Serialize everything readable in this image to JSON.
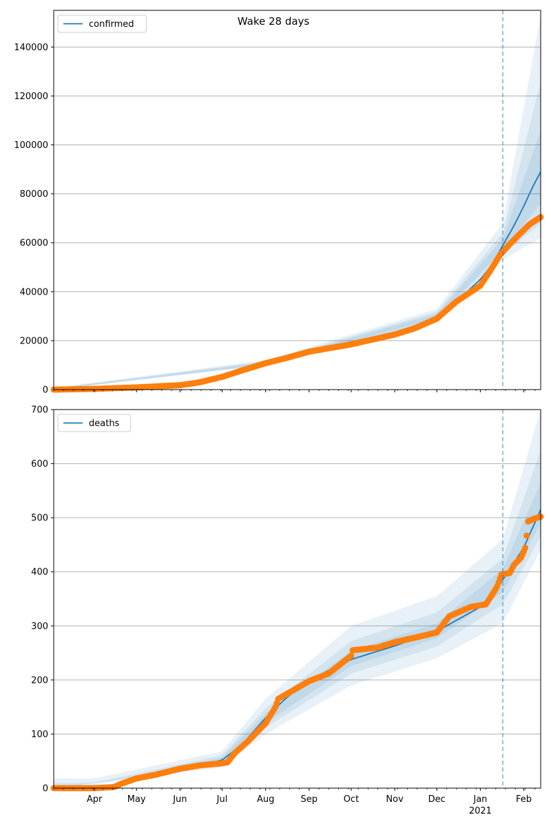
{
  "figure": {
    "title": "Wake 28 days",
    "x_tick_labels": [
      "Apr",
      "May",
      "Jun",
      "Jul",
      "Aug",
      "Sep",
      "Oct",
      "Nov",
      "Dec",
      "Jan",
      "Feb"
    ],
    "x_tick_dates": [
      "2020-04-01",
      "2020-05-01",
      "2020-06-01",
      "2020-07-01",
      "2020-08-01",
      "2020-09-01",
      "2020-10-01",
      "2020-11-01",
      "2020-12-01",
      "2021-01-01",
      "2021-02-01"
    ],
    "year_label": "2021",
    "xlim": [
      "2020-03-03",
      "2021-02-13"
    ],
    "forecast_start": "2021-01-17",
    "colors": {
      "model": "#1f77b4",
      "observed": "#ff7f0e",
      "band": "#1f77b4",
      "grid": "#b0b0b0"
    }
  },
  "chart_data": [
    {
      "type": "line",
      "legend": "confirmed",
      "legend_position": "upper-left",
      "ylim": [
        0,
        155000
      ],
      "y_ticks": [
        0,
        20000,
        40000,
        60000,
        80000,
        100000,
        120000,
        140000
      ],
      "grid": "horizontal",
      "model_series": {
        "name": "confirmed",
        "points": [
          [
            "2020-03-03",
            0
          ],
          [
            "2020-04-01",
            300
          ],
          [
            "2020-05-01",
            800
          ],
          [
            "2020-06-01",
            1900
          ],
          [
            "2020-06-15",
            3000
          ],
          [
            "2020-07-01",
            5200
          ],
          [
            "2020-07-15",
            7800
          ],
          [
            "2020-08-01",
            10800
          ],
          [
            "2020-08-15",
            13000
          ],
          [
            "2020-09-01",
            15800
          ],
          [
            "2020-10-01",
            19500
          ],
          [
            "2020-11-01",
            23500
          ],
          [
            "2020-11-15",
            26000
          ],
          [
            "2020-12-01",
            30000
          ],
          [
            "2020-12-15",
            36000
          ],
          [
            "2021-01-01",
            45000
          ],
          [
            "2021-01-10",
            51500
          ],
          [
            "2021-01-17",
            59000
          ],
          [
            "2021-01-25",
            67000
          ],
          [
            "2021-02-01",
            75000
          ],
          [
            "2021-02-07",
            82500
          ],
          [
            "2021-02-13",
            89000
          ]
        ]
      },
      "bands": [
        {
          "level": "outer",
          "lower": [
            [
              "2020-03-03",
              0
            ],
            [
              "2020-08-01",
              9800
            ],
            [
              "2020-12-01",
              27500
            ],
            [
              "2021-01-17",
              53000
            ],
            [
              "2021-02-13",
              62000
            ]
          ],
          "upper": [
            [
              "2020-03-03",
              800
            ],
            [
              "2020-08-01",
              12000
            ],
            [
              "2020-12-01",
              33000
            ],
            [
              "2021-01-17",
              68000
            ],
            [
              "2021-02-13",
              153000
            ]
          ]
        },
        {
          "level": "middle",
          "lower": [
            [
              "2020-03-03",
              0
            ],
            [
              "2020-08-01",
              10100
            ],
            [
              "2020-12-01",
              28300
            ],
            [
              "2021-01-17",
              55000
            ],
            [
              "2021-02-13",
              68000
            ]
          ],
          "upper": [
            [
              "2020-03-03",
              500
            ],
            [
              "2020-08-01",
              11600
            ],
            [
              "2020-12-01",
              31800
            ],
            [
              "2021-01-17",
              64000
            ],
            [
              "2021-02-13",
              126000
            ]
          ]
        },
        {
          "level": "inner",
          "lower": [
            [
              "2020-03-03",
              0
            ],
            [
              "2020-08-01",
              10400
            ],
            [
              "2020-12-01",
              29000
            ],
            [
              "2021-01-17",
              57000
            ],
            [
              "2021-02-13",
              76000
            ]
          ],
          "upper": [
            [
              "2020-03-03",
              300
            ],
            [
              "2020-08-01",
              11200
            ],
            [
              "2020-12-01",
              31000
            ],
            [
              "2021-01-17",
              61500
            ],
            [
              "2021-02-13",
              106000
            ]
          ]
        }
      ],
      "observed": {
        "points": [
          [
            "2020-03-03",
            0
          ],
          [
            "2020-04-01",
            300
          ],
          [
            "2020-05-01",
            900
          ],
          [
            "2020-06-01",
            1800
          ],
          [
            "2020-06-15",
            3000
          ],
          [
            "2020-07-01",
            5200
          ],
          [
            "2020-07-15",
            7800
          ],
          [
            "2020-08-01",
            10800
          ],
          [
            "2020-08-15",
            12800
          ],
          [
            "2020-09-01",
            15500
          ],
          [
            "2020-10-01",
            18500
          ],
          [
            "2020-11-01",
            22500
          ],
          [
            "2020-11-15",
            25000
          ],
          [
            "2020-12-01",
            29000
          ],
          [
            "2020-12-15",
            36000
          ],
          [
            "2021-01-01",
            42500
          ],
          [
            "2021-01-08",
            48500
          ],
          [
            "2021-01-15",
            55000
          ],
          [
            "2021-01-22",
            59500
          ],
          [
            "2021-01-29",
            63500
          ],
          [
            "2021-02-05",
            67500
          ],
          [
            "2021-02-13",
            70500
          ]
        ]
      }
    },
    {
      "type": "line",
      "legend": "deaths",
      "legend_position": "upper-left",
      "ylim": [
        0,
        700
      ],
      "y_ticks": [
        0,
        100,
        200,
        300,
        400,
        500,
        600,
        700
      ],
      "grid": "horizontal",
      "model_series": {
        "name": "deaths",
        "points": [
          [
            "2020-03-03",
            0
          ],
          [
            "2020-04-01",
            2
          ],
          [
            "2020-04-15",
            5
          ],
          [
            "2020-05-01",
            17
          ],
          [
            "2020-06-01",
            33
          ],
          [
            "2020-07-01",
            52
          ],
          [
            "2020-07-15",
            80
          ],
          [
            "2020-08-01",
            130
          ],
          [
            "2020-08-15",
            165
          ],
          [
            "2020-09-01",
            200
          ],
          [
            "2020-10-01",
            238
          ],
          [
            "2020-11-01",
            263
          ],
          [
            "2020-12-01",
            290
          ],
          [
            "2021-01-01",
            335
          ],
          [
            "2021-01-17",
            385
          ],
          [
            "2021-02-01",
            445
          ],
          [
            "2021-02-13",
            515
          ]
        ]
      },
      "bands": [
        {
          "level": "outer",
          "lower": [
            [
              "2020-03-03",
              0
            ],
            [
              "2020-07-01",
              38
            ],
            [
              "2020-08-01",
              100
            ],
            [
              "2020-10-01",
              190
            ],
            [
              "2020-12-01",
              240
            ],
            [
              "2021-01-17",
              305
            ],
            [
              "2021-02-13",
              440
            ]
          ],
          "upper": [
            [
              "2020-03-03",
              18
            ],
            [
              "2020-04-01",
              18
            ],
            [
              "2020-07-01",
              68
            ],
            [
              "2020-08-01",
              165
            ],
            [
              "2020-10-01",
              300
            ],
            [
              "2020-12-01",
              355
            ],
            [
              "2021-01-17",
              460
            ],
            [
              "2021-02-13",
              700
            ]
          ]
        },
        {
          "level": "middle",
          "lower": [
            [
              "2020-03-03",
              0
            ],
            [
              "2020-07-01",
              43
            ],
            [
              "2020-08-01",
              112
            ],
            [
              "2020-10-01",
              212
            ],
            [
              "2020-12-01",
              262
            ],
            [
              "2021-01-17",
              340
            ],
            [
              "2021-02-13",
              465
            ]
          ],
          "upper": [
            [
              "2020-03-03",
              10
            ],
            [
              "2020-04-01",
              10
            ],
            [
              "2020-07-01",
              61
            ],
            [
              "2020-08-01",
              148
            ],
            [
              "2020-10-01",
              272
            ],
            [
              "2020-12-01",
              325
            ],
            [
              "2021-01-17",
              425
            ],
            [
              "2021-02-13",
              625
            ]
          ]
        },
        {
          "level": "inner",
          "lower": [
            [
              "2020-03-03",
              0
            ],
            [
              "2020-07-01",
              47
            ],
            [
              "2020-08-01",
              121
            ],
            [
              "2020-10-01",
              226
            ],
            [
              "2020-12-01",
              277
            ],
            [
              "2021-01-17",
              362
            ],
            [
              "2021-02-13",
              490
            ]
          ],
          "upper": [
            [
              "2020-03-03",
              5
            ],
            [
              "2020-04-01",
              5
            ],
            [
              "2020-07-01",
              57
            ],
            [
              "2020-08-01",
              138
            ],
            [
              "2020-10-01",
              254
            ],
            [
              "2020-12-01",
              305
            ],
            [
              "2021-01-17",
              405
            ],
            [
              "2021-02-13",
              565
            ]
          ]
        }
      ],
      "observed": {
        "points": [
          [
            "2020-03-03",
            0
          ],
          [
            "2020-04-01",
            0
          ],
          [
            "2020-04-15",
            2
          ],
          [
            "2020-04-20",
            8
          ],
          [
            "2020-05-01",
            18
          ],
          [
            "2020-05-15",
            25
          ],
          [
            "2020-06-01",
            36
          ],
          [
            "2020-06-15",
            42
          ],
          [
            "2020-07-01",
            46
          ],
          [
            "2020-07-05",
            48
          ],
          [
            "2020-07-10",
            65
          ],
          [
            "2020-07-20",
            88
          ],
          [
            "2020-08-01",
            120
          ],
          [
            "2020-08-08",
            150
          ],
          [
            "2020-08-10",
            165
          ],
          [
            "2020-08-20",
            180
          ],
          [
            "2020-09-01",
            198
          ],
          [
            "2020-09-15",
            212
          ],
          [
            "2020-10-01",
            245
          ],
          [
            "2020-10-02",
            255
          ],
          [
            "2020-10-20",
            260
          ],
          [
            "2020-11-01",
            270
          ],
          [
            "2020-11-15",
            278
          ],
          [
            "2020-12-01",
            288
          ],
          [
            "2020-12-10",
            318
          ],
          [
            "2020-12-25",
            335
          ],
          [
            "2021-01-05",
            340
          ],
          [
            "2021-01-10",
            360
          ],
          [
            "2021-01-13",
            373
          ],
          [
            "2021-01-16",
            395
          ],
          [
            "2021-01-22",
            398
          ],
          [
            "2021-01-25",
            413
          ],
          [
            "2021-01-30",
            426
          ],
          [
            "2021-02-02",
            444
          ],
          [
            "2021-02-03",
            467
          ],
          [
            "2021-02-04",
            493
          ],
          [
            "2021-02-08",
            498
          ],
          [
            "2021-02-13",
            502
          ]
        ]
      }
    }
  ]
}
